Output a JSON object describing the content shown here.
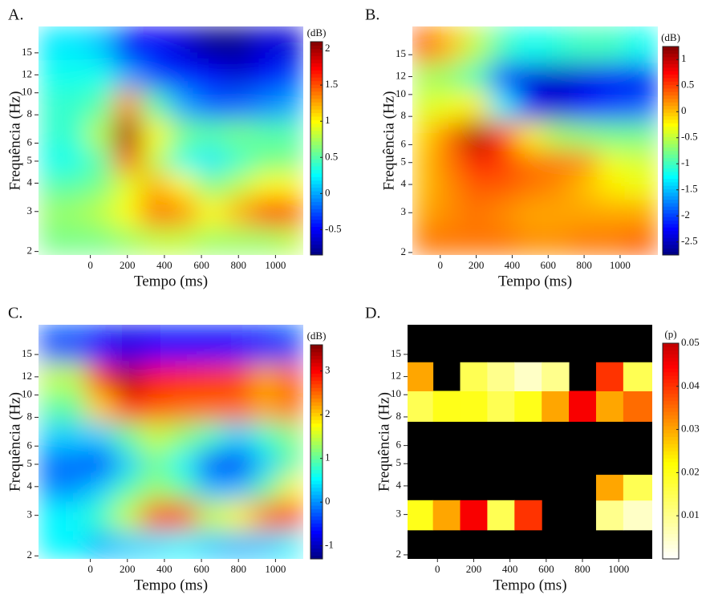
{
  "chart_data": [
    {
      "type": "heatmap",
      "panel_label": "A.",
      "xlabel": "Tempo (ms)",
      "ylabel": "Frequência (Hz)",
      "ylog": true,
      "xlim": [
        -280,
        1150
      ],
      "ylim": [
        1.93,
        19.6
      ],
      "xticks": [
        0,
        200,
        400,
        600,
        800,
        1000
      ],
      "yticks": [
        2,
        3,
        4,
        5,
        6,
        8,
        10,
        12,
        15
      ],
      "x": [
        -100,
        50,
        200,
        350,
        500,
        650,
        800,
        950,
        1100
      ],
      "y": [
        2.2,
        3,
        4,
        5,
        6.5,
        9,
        12,
        16
      ],
      "z": [
        [
          0.6,
          0.6,
          0.7,
          0.8,
          0.8,
          0.7,
          0.7,
          0.7,
          0.8
        ],
        [
          0.7,
          0.8,
          1.0,
          1.4,
          1.3,
          1.0,
          1.2,
          1.5,
          1.5
        ],
        [
          0.5,
          0.6,
          0.9,
          1.2,
          1.0,
          0.6,
          0.8,
          1.0,
          1.0
        ],
        [
          0.3,
          0.5,
          1.5,
          0.8,
          0.3,
          0.2,
          0.4,
          0.6,
          0.6
        ],
        [
          0.4,
          0.8,
          2.0,
          1.0,
          0.6,
          0.5,
          0.6,
          0.5,
          0.5
        ],
        [
          0.4,
          0.5,
          1.3,
          0.5,
          0.0,
          -0.2,
          -0.2,
          -0.1,
          0.0
        ],
        [
          0.3,
          0.3,
          0.0,
          -0.3,
          -0.4,
          -0.5,
          -0.6,
          -0.5,
          -0.3
        ],
        [
          0.2,
          0.1,
          -0.5,
          -0.5,
          -0.6,
          -0.8,
          -0.8,
          -0.6,
          -0.6
        ]
      ],
      "colormap": "jet",
      "colorbar": {
        "label": "(dB)",
        "lim": [
          -0.85,
          2.1
        ],
        "ticks": [
          -0.5,
          0,
          0.5,
          1,
          1.5,
          2
        ]
      }
    },
    {
      "type": "heatmap",
      "panel_label": "B.",
      "xlabel": "Tempo (ms)",
      "ylabel": "Frequência (Hz)",
      "ylog": true,
      "xlim": [
        -155,
        1210
      ],
      "ylim": [
        1.95,
        20
      ],
      "xticks": [
        0,
        200,
        400,
        600,
        800,
        1000
      ],
      "yticks": [
        2,
        3,
        4,
        5,
        6,
        8,
        10,
        12,
        15
      ],
      "x": [
        -100,
        50,
        200,
        350,
        500,
        650,
        800,
        950,
        1100
      ],
      "y": [
        2.2,
        3,
        4,
        5,
        6.5,
        9,
        12,
        16
      ],
      "z": [
        [
          0.3,
          0.3,
          0.3,
          0.3,
          0.2,
          0.2,
          0.3,
          0.3,
          0.4
        ],
        [
          0.1,
          0.2,
          0.3,
          0.2,
          0.1,
          0.1,
          0.1,
          0.1,
          0.1
        ],
        [
          0.0,
          0.2,
          0.4,
          0.4,
          0.3,
          0.2,
          0.0,
          -0.2,
          -0.3
        ],
        [
          0.0,
          0.3,
          0.7,
          0.5,
          0.3,
          0.3,
          0.2,
          -0.3,
          -0.4
        ],
        [
          -0.1,
          0.3,
          1.1,
          0.5,
          -0.2,
          -0.6,
          -0.7,
          -0.8,
          -0.8
        ],
        [
          -0.4,
          -0.3,
          -0.2,
          -1.3,
          -2.3,
          -2.4,
          -2.2,
          -2.0,
          -1.9
        ],
        [
          -0.6,
          -0.7,
          -1.0,
          -2.0,
          -2.4,
          -2.5,
          -2.4,
          -2.3,
          -2.3
        ],
        [
          0.4,
          0.0,
          -0.5,
          -1.0,
          -1.2,
          -1.1,
          -1.0,
          -1.0,
          -1.2
        ]
      ],
      "colormap": "jet",
      "colorbar": {
        "label": "(dB)",
        "lim": [
          -2.75,
          1.25
        ],
        "ticks": [
          -2.5,
          -2,
          -1.5,
          -1,
          -0.5,
          0,
          0.5,
          1
        ]
      }
    },
    {
      "type": "heatmap",
      "panel_label": "C.",
      "xlabel": "Tempo (ms)",
      "ylabel": "Frequência (Hz)",
      "ylog": true,
      "xlim": [
        -280,
        1150
      ],
      "ylim": [
        1.94,
        20.2
      ],
      "xticks": [
        0,
        200,
        400,
        600,
        800,
        1000
      ],
      "yticks": [
        2,
        3,
        4,
        5,
        6,
        8,
        10,
        12,
        15
      ],
      "x": [
        -100,
        50,
        200,
        350,
        500,
        650,
        800,
        950,
        1100
      ],
      "y": [
        2.2,
        3,
        4,
        5,
        6.5,
        9,
        12,
        16
      ],
      "z": [
        [
          0.5,
          0.2,
          0.3,
          0.4,
          0.5,
          0.3,
          0.2,
          0.3,
          0.5
        ],
        [
          0.5,
          0.8,
          1.5,
          2.6,
          2.6,
          1.5,
          1.8,
          2.4,
          2.8
        ],
        [
          0.0,
          0.3,
          0.9,
          1.3,
          1.0,
          0.2,
          0.2,
          1.0,
          1.8
        ],
        [
          -0.2,
          -0.5,
          0.3,
          1.0,
          0.5,
          -0.4,
          -0.7,
          0.3,
          1.0
        ],
        [
          0.3,
          0.3,
          1.0,
          1.5,
          1.2,
          0.8,
          0.3,
          0.8,
          1.2
        ],
        [
          1.0,
          2.0,
          2.8,
          2.6,
          2.5,
          2.5,
          2.5,
          2.2,
          2.5
        ],
        [
          1.5,
          2.8,
          3.4,
          3.0,
          2.9,
          2.8,
          2.7,
          2.2,
          2.6
        ],
        [
          -0.3,
          -0.6,
          -0.8,
          -0.7,
          -0.6,
          -0.7,
          -0.6,
          -0.5,
          -0.3
        ]
      ],
      "colormap": "jet",
      "colorbar": {
        "label": "(dB)",
        "lim": [
          -1.3,
          3.6
        ],
        "ticks": [
          -1,
          0,
          1,
          2,
          3
        ]
      }
    },
    {
      "type": "heatmap",
      "panel_label": "D.",
      "xlabel": "Tempo (ms)",
      "ylabel": "Frequência (Hz)",
      "ylog": true,
      "xlim": [
        -165,
        1185
      ],
      "ylim": [
        1.92,
        20.2
      ],
      "xticks": [
        0,
        200,
        400,
        600,
        800,
        1000
      ],
      "yticks": [
        2,
        3,
        4,
        5,
        6,
        8,
        10,
        12,
        15
      ],
      "x": [
        -100,
        50,
        200,
        350,
        500,
        650,
        800,
        950,
        1100
      ],
      "y": [
        2.2,
        3,
        4,
        5,
        6.5,
        9,
        12,
        16
      ],
      "z": [
        [
          null,
          null,
          null,
          null,
          null,
          null,
          null,
          null,
          null
        ],
        [
          0.02,
          0.03,
          0.045,
          0.015,
          0.04,
          null,
          null,
          0.01,
          0.005
        ],
        [
          null,
          null,
          null,
          null,
          null,
          null,
          null,
          0.03,
          0.015
        ],
        [
          null,
          null,
          null,
          null,
          null,
          null,
          null,
          null,
          null
        ],
        [
          null,
          null,
          null,
          null,
          null,
          null,
          null,
          null,
          null
        ],
        [
          0.015,
          0.02,
          0.02,
          0.015,
          0.02,
          0.03,
          0.045,
          0.03,
          0.035
        ],
        [
          0.03,
          null,
          0.015,
          0.01,
          0.005,
          0.01,
          null,
          0.04,
          0.015
        ],
        [
          null,
          null,
          null,
          null,
          null,
          null,
          null,
          null,
          null
        ]
      ],
      "colormap": "hot_r",
      "null_color": "#000000",
      "colorbar": {
        "label": "(p)",
        "lim": [
          0,
          0.05
        ],
        "ticks": [
          0.01,
          0.02,
          0.03,
          0.04,
          0.05
        ]
      }
    }
  ]
}
